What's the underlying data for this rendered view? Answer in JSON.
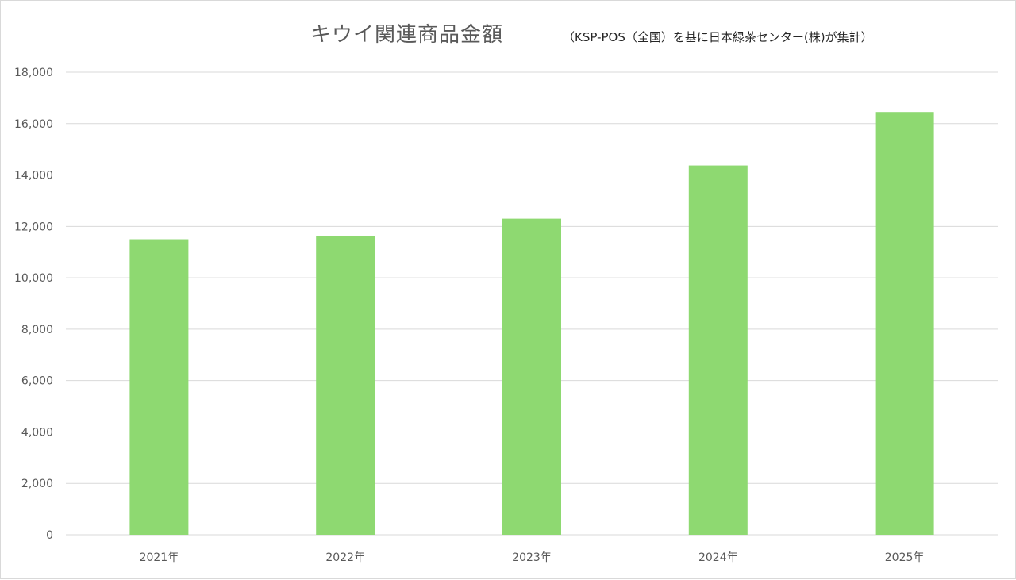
{
  "chart_data": {
    "type": "bar",
    "title": "キウイ関連商品金額",
    "subtitle": "（KSP-POS（全国）を基に日本緑茶センター(株)が集計）",
    "xlabel": "",
    "ylabel": "",
    "categories": [
      "2021年",
      "2022年",
      "2023年",
      "2024年",
      "2025年"
    ],
    "series": [
      {
        "values": [
          11500,
          11640,
          12300,
          14370,
          16450
        ]
      }
    ],
    "ylim": [
      0,
      18000
    ],
    "yticks": [
      0,
      2000,
      4000,
      6000,
      8000,
      10000,
      12000,
      14000,
      16000,
      18000
    ],
    "ytick_labels": [
      "0",
      "2,000",
      "4,000",
      "6,000",
      "8,000",
      "10,000",
      "12,000",
      "14,000",
      "16,000",
      "18,000"
    ],
    "grid": true,
    "legend": "none",
    "bar_color": "#8ed971",
    "grid_color": "#d9d9d9"
  }
}
